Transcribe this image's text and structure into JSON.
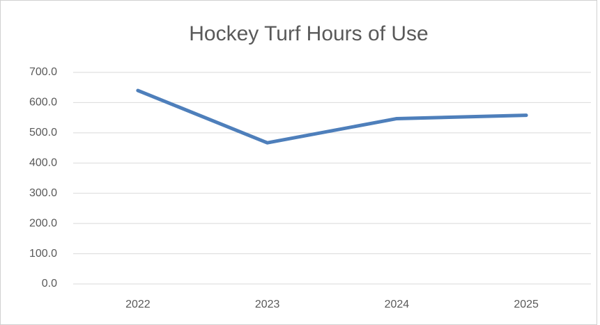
{
  "chart_data": {
    "type": "line",
    "title": "Hockey Turf Hours of Use",
    "categories": [
      "2022",
      "2023",
      "2024",
      "2025"
    ],
    "series": [
      {
        "name": "Hours of Use",
        "color": "#4e7fbb",
        "values": [
          640,
          467,
          547,
          558
        ]
      }
    ],
    "ylim": [
      0,
      700
    ],
    "yticks": [
      {
        "value": 0,
        "label": "0.0"
      },
      {
        "value": 100,
        "label": "100.0"
      },
      {
        "value": 200,
        "label": "200.0"
      },
      {
        "value": 300,
        "label": "300.0"
      },
      {
        "value": 400,
        "label": "400.0"
      },
      {
        "value": 500,
        "label": "500.0"
      },
      {
        "value": 600,
        "label": "600.0"
      },
      {
        "value": 700,
        "label": "700.0"
      }
    ],
    "grid": true
  }
}
